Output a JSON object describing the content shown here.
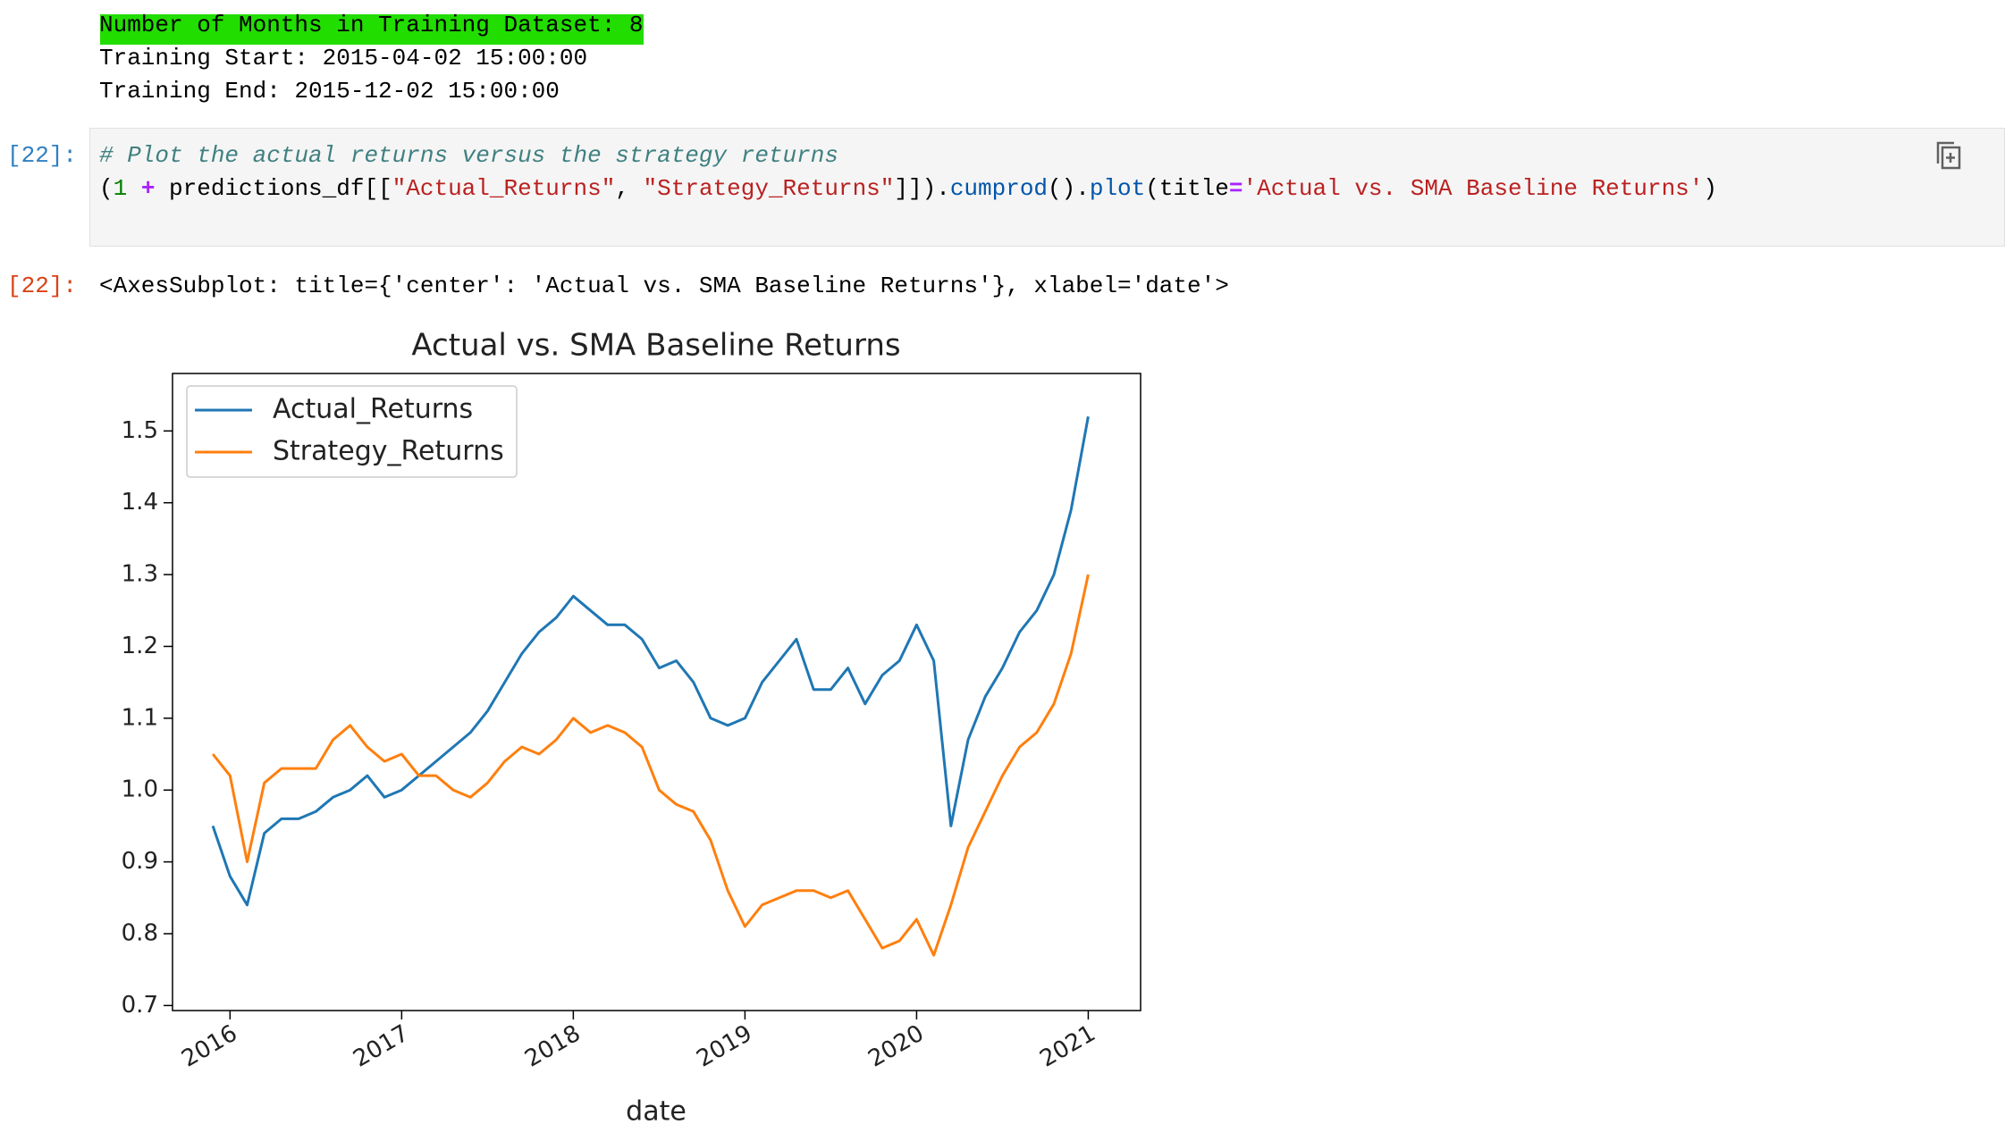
{
  "stream_output": {
    "lines": [
      "Number of Months in Training Dataset: 8",
      "Training Start: 2015-04-02 15:00:00",
      "Training End: 2015-12-02 15:00:00"
    ]
  },
  "code_cell": {
    "prompt": "[22]:",
    "comment": "# Plot the actual returns versus the strategy returns",
    "tokens": [
      "(",
      "1",
      " + ",
      "predictions_df[[",
      "\"Actual_Returns\"",
      ", ",
      "\"Strategy_Returns\"",
      "]]).",
      "cumprod",
      "().",
      "plot",
      "(title",
      "=",
      "'Actual vs. SMA Baseline Returns'",
      ")"
    ]
  },
  "output_cell": {
    "prompt": "[22]:",
    "repr": "<AxesSubplot: title={'center': 'Actual vs. SMA Baseline Returns'}, xlabel='date'>"
  },
  "chart_data": {
    "type": "line",
    "title": "Actual vs. SMA Baseline Returns",
    "xlabel": "date",
    "x": [
      2015.9,
      2016.0,
      2016.1,
      2016.2,
      2016.3,
      2016.4,
      2016.5,
      2016.6,
      2016.7,
      2016.8,
      2016.9,
      2017.0,
      2017.1,
      2017.2,
      2017.3,
      2017.4,
      2017.5,
      2017.6,
      2017.7,
      2017.8,
      2017.9,
      2018.0,
      2018.1,
      2018.2,
      2018.3,
      2018.4,
      2018.5,
      2018.6,
      2018.7,
      2018.8,
      2018.9,
      2019.0,
      2019.1,
      2019.2,
      2019.3,
      2019.4,
      2019.5,
      2019.6,
      2019.7,
      2019.8,
      2019.9,
      2020.0,
      2020.1,
      2020.2,
      2020.3,
      2020.4,
      2020.5,
      2020.6,
      2020.7,
      2020.8,
      2020.9,
      2021.0
    ],
    "series": [
      {
        "name": "Actual_Returns",
        "color": "#1f77b4",
        "values": [
          0.95,
          0.88,
          0.84,
          0.94,
          0.96,
          0.96,
          0.97,
          0.99,
          1.0,
          1.02,
          0.99,
          1.0,
          1.02,
          1.04,
          1.06,
          1.08,
          1.11,
          1.15,
          1.19,
          1.22,
          1.24,
          1.27,
          1.25,
          1.23,
          1.23,
          1.21,
          1.17,
          1.18,
          1.15,
          1.1,
          1.09,
          1.1,
          1.15,
          1.18,
          1.21,
          1.14,
          1.14,
          1.17,
          1.12,
          1.16,
          1.18,
          1.23,
          1.18,
          0.95,
          1.07,
          1.13,
          1.17,
          1.22,
          1.25,
          1.3,
          1.39,
          1.52
        ]
      },
      {
        "name": "Strategy_Returns",
        "color": "#ff7f0e",
        "values": [
          1.05,
          1.02,
          0.9,
          1.01,
          1.03,
          1.03,
          1.03,
          1.07,
          1.09,
          1.06,
          1.04,
          1.05,
          1.02,
          1.02,
          1.0,
          0.99,
          1.01,
          1.04,
          1.06,
          1.05,
          1.07,
          1.1,
          1.08,
          1.09,
          1.08,
          1.06,
          1.0,
          0.98,
          0.97,
          0.93,
          0.86,
          0.81,
          0.84,
          0.85,
          0.86,
          0.86,
          0.85,
          0.86,
          0.82,
          0.78,
          0.79,
          0.82,
          0.77,
          0.84,
          0.92,
          0.97,
          1.02,
          1.06,
          1.08,
          1.12,
          1.19,
          1.3
        ]
      }
    ],
    "xlim": [
      2015.665,
      2021.305
    ],
    "xticks": [
      2016,
      2017,
      2018,
      2019,
      2020,
      2021
    ],
    "ylim": [
      0.693,
      1.58
    ],
    "yticks": [
      {
        "value": 0.7,
        "label": "0.7"
      },
      0.8,
      0.9,
      {
        "value": 1,
        "label": "1.0"
      },
      1.1,
      1.2,
      1.3,
      1.4,
      1.5
    ],
    "legend": "upper left",
    "grid": false
  }
}
